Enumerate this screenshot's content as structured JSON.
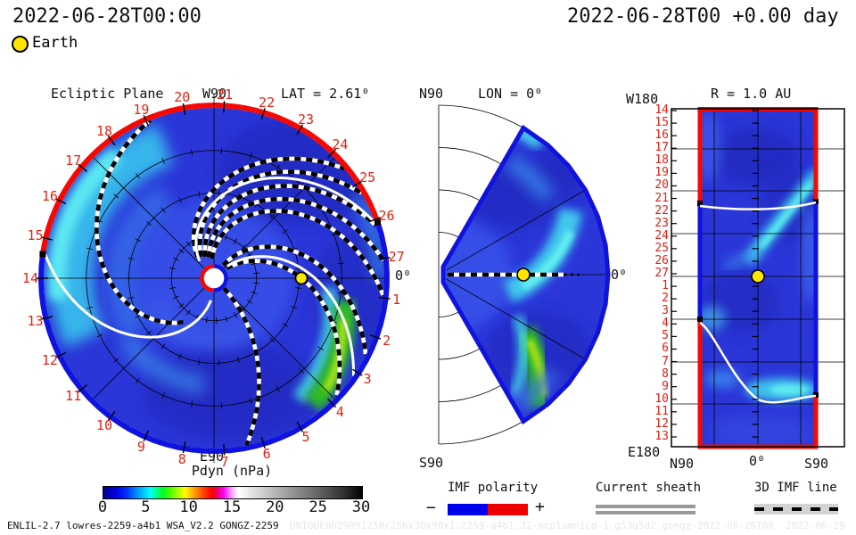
{
  "header": {
    "left_datetime": "2022-06-28T00:00",
    "right_datetime": "2022-06-28T00 +0.00 day",
    "earth_label": "Earth"
  },
  "left_plot": {
    "title": "Ecliptic Plane",
    "west_label": "W90",
    "east_label": "E90",
    "zero_label": "0⁰",
    "lat_label": "LAT = 2.61⁰",
    "day_labels": [
      "1",
      "2",
      "3",
      "4",
      "5",
      "6",
      "7",
      "8",
      "9",
      "10",
      "11",
      "12",
      "13",
      "14",
      "15",
      "16",
      "17",
      "18",
      "19",
      "20",
      "21",
      "22",
      "23",
      "24",
      "25",
      "26",
      "27"
    ],
    "colorbar": {
      "title": "Pdyn (nPa)",
      "ticks": [
        "0",
        "5",
        "10",
        "15",
        "20",
        "25",
        "30"
      ]
    }
  },
  "middle_plot": {
    "title": "LON = 0⁰",
    "north_label": "N90",
    "south_label": "S90",
    "zero_label": "0⁰"
  },
  "right_plot": {
    "title": "R = 1.0 AU",
    "west_label": "W180",
    "east_label": "E180",
    "x_labels": [
      "N90",
      "0⁰",
      "S90"
    ],
    "day_labels": [
      "14",
      "15",
      "16",
      "17",
      "18",
      "19",
      "20",
      "21",
      "22",
      "23",
      "24",
      "25",
      "26",
      "27",
      "1",
      "2",
      "3",
      "4",
      "5",
      "6",
      "7",
      "8",
      "9",
      "10",
      "11",
      "12",
      "13"
    ]
  },
  "legend": {
    "imf_polarity": {
      "label": "IMF polarity",
      "minus": "−",
      "plus": "+",
      "negative_color": "#0000ee",
      "positive_color": "#ee0000"
    },
    "current_sheath": {
      "label": "Current sheath",
      "color": "#999999"
    },
    "imf_line_3d": {
      "label": "3D IMF line"
    }
  },
  "footer": {
    "model_info": "ENLIL-2.7 lowres-2259-a4b1 WSA_V2.2 GONGZ-2259",
    "run_id": "UNIQUE0629091250/256x30x90x1.2259-a4b1.32-mcp1umn1cd-1.g53q5d2.gongz-2022-06-28T00  2022-06-29"
  },
  "chart_data": [
    {
      "type": "heatmap",
      "panel": "ecliptic-plane",
      "title": "Ecliptic Plane",
      "projection": "polar, Sun at center, ~2.1 AU outer radius",
      "quantity": "Pdyn (nPa)",
      "color_scale_range": [
        0,
        30
      ],
      "colorbar_ticks": [
        0,
        5,
        10,
        15,
        20,
        25,
        30
      ],
      "lat_deg": 2.61,
      "earth": {
        "r_au": 1.0,
        "lon_deg": 0
      },
      "day_ring_labels_clockwise_from_top": [
        "21",
        "22",
        "23",
        "24",
        "25",
        "26",
        "27",
        "1",
        "2",
        "3",
        "4",
        "5",
        "6",
        "7",
        "8",
        "9",
        "10",
        "11",
        "12",
        "13",
        "14",
        "15",
        "16",
        "17",
        "18",
        "19",
        "20"
      ],
      "imf_polarity_border": {
        "red_positive_arc": "top, approx day 26 to day 14.6",
        "blue_negative_arc": "bottom, approx day 14.6 to day 26"
      },
      "features": [
        "green/yellow high-pressure stream near days 1-3 at ~1.5-1.9 AU",
        "cyan stream at west limb days 15-17",
        "white heliospheric current sheet spirals",
        "black/white dashed 3D IMF lines"
      ]
    },
    {
      "type": "heatmap",
      "panel": "meridional-plane",
      "title": "LON = 0⁰",
      "projection": "polar half-disk, latitude -90 to +90, colored wedge ±60 deg",
      "earth": {
        "r_au": 1.0,
        "lat_deg": 0
      },
      "features": [
        "green high-pressure band south of equator near 1.3-1.9 AU",
        "cyan band crossing equator near 0.9-1.7 AU",
        "dashed IMF line along equator through Earth"
      ]
    },
    {
      "type": "heatmap",
      "panel": "radius-1au-map",
      "title": "R = 1.0 AU",
      "x_axis": "heliolatitude from N90 to S90 (data band ±60 deg)",
      "y_axis_days_top_to_bottom": [
        "14",
        "15",
        "16",
        "17",
        "18",
        "19",
        "20",
        "21",
        "22",
        "23",
        "24",
        "25",
        "26",
        "27",
        "1",
        "2",
        "3",
        "4",
        "5",
        "6",
        "7",
        "8",
        "9",
        "10",
        "11",
        "12",
        "13"
      ],
      "earth": {
        "day": "27",
        "lat_deg": 0
      },
      "current_sheet_crossing_days": [
        21.5,
        3.5,
        10
      ],
      "polarity_edges": {
        "red_days": "13.8-21.4 and 3.5-13.8",
        "blue_days": "21.4-3.5"
      }
    }
  ]
}
